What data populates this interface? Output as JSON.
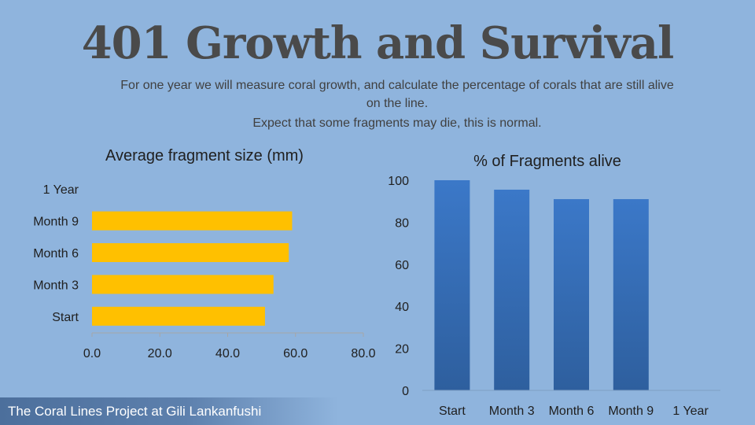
{
  "slide": {
    "title": "401 Growth and Survival",
    "subtitle": "For one year we will measure coral growth, and calculate the percentage of corals that are still alive on the line.",
    "note": "Expect that some fragments may die, this is normal.",
    "footer": "The Coral Lines Project at Gili Lankanfushi"
  },
  "colors": {
    "bar_orange": "#ffc000",
    "bar_blue": "#3a74c2",
    "background": "#8fb4dd"
  },
  "chart_data": [
    {
      "type": "bar",
      "orientation": "horizontal",
      "title": "Average fragment size (mm)",
      "categories": [
        "Start",
        "Month 3",
        "Month 6",
        "Month 9",
        "1 Year"
      ],
      "values": [
        51,
        53.5,
        58,
        59,
        null
      ],
      "xlim": [
        0,
        80
      ],
      "xticks": [
        "0.0",
        "20.0",
        "40.0",
        "60.0",
        "80.0"
      ],
      "grid": false
    },
    {
      "type": "bar",
      "orientation": "vertical",
      "title": "% of Fragments alive",
      "categories": [
        "Start",
        "Month 3",
        "Month 6",
        "Month 9",
        "1 Year"
      ],
      "values": [
        100,
        95.5,
        91,
        91,
        null
      ],
      "ylim": [
        0,
        100
      ],
      "yticks": [
        "0",
        "20",
        "40",
        "60",
        "80",
        "100"
      ],
      "grid": false
    }
  ]
}
